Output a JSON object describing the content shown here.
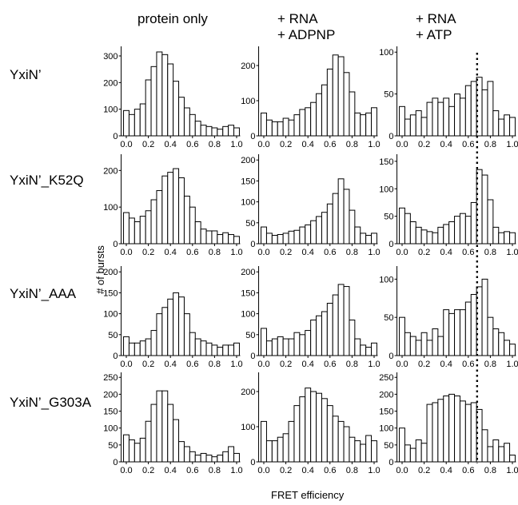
{
  "column_headers": [
    {
      "line1": "protein only",
      "line2": ""
    },
    {
      "line1": "+ RNA",
      "line2": "+ ADPNP"
    },
    {
      "line1": "+ RNA",
      "line2": "+ ATP"
    }
  ],
  "row_labels": [
    "YxiN’",
    "YxiN’_K52Q",
    "YxiN’_AAA",
    "YxiN’_G303A"
  ],
  "ylabel": "# of bursts",
  "xlabel": "FRET efficiency",
  "reference_line": {
    "x": 0.68,
    "style": "dotted",
    "columns": [
      2
    ]
  },
  "chart_data": [
    {
      "type": "bar",
      "row": "YxiN’",
      "condition": "protein only",
      "x_ticks": [
        "0.0",
        "0.2",
        "0.4",
        "0.6",
        "0.8",
        "1.0"
      ],
      "y_ticks": [
        "100",
        "200",
        "300"
      ],
      "ylim": [
        0,
        330
      ],
      "xlim": [
        0,
        1
      ],
      "bin_centers": [
        0.0,
        0.05,
        0.1,
        0.15,
        0.2,
        0.25,
        0.3,
        0.35,
        0.4,
        0.45,
        0.5,
        0.55,
        0.6,
        0.65,
        0.7,
        0.75,
        0.8,
        0.85,
        0.9,
        0.95,
        1.0
      ],
      "values": [
        95,
        80,
        100,
        120,
        210,
        260,
        315,
        305,
        270,
        205,
        145,
        105,
        80,
        55,
        40,
        35,
        30,
        25,
        35,
        40,
        30
      ]
    },
    {
      "type": "bar",
      "row": "YxiN’",
      "condition": "+ RNA + ADPNP",
      "x_ticks": [
        "0.0",
        "0.2",
        "0.4",
        "0.6",
        "0.8",
        "1.0"
      ],
      "y_ticks": [
        "100",
        "200"
      ],
      "ylim": [
        0,
        250
      ],
      "xlim": [
        0,
        1
      ],
      "bin_centers": [
        0.0,
        0.05,
        0.1,
        0.15,
        0.2,
        0.25,
        0.3,
        0.35,
        0.4,
        0.45,
        0.5,
        0.55,
        0.6,
        0.65,
        0.7,
        0.75,
        0.8,
        0.85,
        0.9,
        0.95,
        1.0
      ],
      "values": [
        65,
        45,
        40,
        40,
        50,
        45,
        60,
        75,
        80,
        95,
        120,
        145,
        190,
        230,
        225,
        180,
        125,
        65,
        60,
        65,
        80
      ]
    },
    {
      "type": "bar",
      "row": "YxiN’",
      "condition": "+ RNA + ATP",
      "x_ticks": [
        "0.0",
        "0.2",
        "0.4",
        "0.6",
        "0.8",
        "1.0"
      ],
      "y_ticks": [
        "50",
        "100"
      ],
      "ylim": [
        0,
        105
      ],
      "xlim": [
        0,
        1
      ],
      "bin_centers": [
        0.0,
        0.05,
        0.1,
        0.15,
        0.2,
        0.25,
        0.3,
        0.35,
        0.4,
        0.45,
        0.5,
        0.55,
        0.6,
        0.65,
        0.7,
        0.75,
        0.8,
        0.85,
        0.9,
        0.95,
        1.0
      ],
      "values": [
        35,
        20,
        25,
        30,
        22,
        40,
        45,
        40,
        45,
        35,
        50,
        45,
        60,
        65,
        70,
        55,
        65,
        30,
        20,
        25,
        22
      ]
    },
    {
      "type": "bar",
      "row": "YxiN’_K52Q",
      "condition": "protein only",
      "x_ticks": [
        "0.0",
        "0.2",
        "0.4",
        "0.6",
        "0.8",
        "1.0"
      ],
      "y_ticks": [
        "100",
        "200"
      ],
      "ylim": [
        0,
        240
      ],
      "xlim": [
        0,
        1
      ],
      "bin_centers": [
        0.0,
        0.05,
        0.1,
        0.15,
        0.2,
        0.25,
        0.3,
        0.35,
        0.4,
        0.45,
        0.5,
        0.55,
        0.6,
        0.65,
        0.7,
        0.75,
        0.8,
        0.85,
        0.9,
        0.95,
        1.0
      ],
      "values": [
        85,
        70,
        60,
        75,
        90,
        120,
        145,
        185,
        195,
        205,
        180,
        130,
        100,
        60,
        40,
        35,
        35,
        25,
        30,
        25,
        20
      ]
    },
    {
      "type": "bar",
      "row": "YxiN’_K52Q",
      "condition": "+ RNA + ADPNP",
      "x_ticks": [
        "0.0",
        "0.2",
        "0.4",
        "0.6",
        "0.8",
        "1.0"
      ],
      "y_ticks": [
        "50",
        "100",
        "150",
        "200"
      ],
      "ylim": [
        0,
        210
      ],
      "xlim": [
        0,
        1
      ],
      "bin_centers": [
        0.0,
        0.05,
        0.1,
        0.15,
        0.2,
        0.25,
        0.3,
        0.35,
        0.4,
        0.45,
        0.5,
        0.55,
        0.6,
        0.65,
        0.7,
        0.75,
        0.8,
        0.85,
        0.9,
        0.95,
        1.0
      ],
      "values": [
        40,
        25,
        20,
        22,
        25,
        30,
        32,
        40,
        45,
        55,
        65,
        75,
        95,
        120,
        155,
        130,
        80,
        40,
        25,
        20,
        25
      ]
    },
    {
      "type": "bar",
      "row": "YxiN’_K52Q",
      "condition": "+ RNA + ATP",
      "x_ticks": [
        "0.0",
        "0.2",
        "0.4",
        "0.6",
        "0.8",
        "1.0"
      ],
      "y_ticks": [
        "50",
        "100",
        "150"
      ],
      "ylim": [
        0,
        160
      ],
      "xlim": [
        0,
        1
      ],
      "bin_centers": [
        0.0,
        0.05,
        0.1,
        0.15,
        0.2,
        0.25,
        0.3,
        0.35,
        0.4,
        0.45,
        0.5,
        0.55,
        0.6,
        0.65,
        0.7,
        0.75,
        0.8,
        0.85,
        0.9,
        0.95,
        1.0
      ],
      "values": [
        65,
        55,
        40,
        30,
        25,
        22,
        20,
        30,
        35,
        40,
        50,
        55,
        50,
        75,
        135,
        125,
        80,
        30,
        20,
        22,
        20
      ]
    },
    {
      "type": "bar",
      "row": "YxiN’_AAA",
      "condition": "protein only",
      "x_ticks": [
        "0.0",
        "0.2",
        "0.4",
        "0.6",
        "0.8",
        "1.0"
      ],
      "y_ticks": [
        "50",
        "100",
        "150",
        "200"
      ],
      "ylim": [
        0,
        210
      ],
      "xlim": [
        0,
        1
      ],
      "bin_centers": [
        0.0,
        0.05,
        0.1,
        0.15,
        0.2,
        0.25,
        0.3,
        0.35,
        0.4,
        0.45,
        0.5,
        0.55,
        0.6,
        0.65,
        0.7,
        0.75,
        0.8,
        0.85,
        0.9,
        0.95,
        1.0
      ],
      "values": [
        45,
        30,
        30,
        35,
        40,
        60,
        100,
        115,
        135,
        150,
        140,
        100,
        55,
        40,
        35,
        30,
        25,
        20,
        25,
        25,
        30
      ]
    },
    {
      "type": "bar",
      "row": "YxiN’_AAA",
      "condition": "+ RNA + ADPNP",
      "x_ticks": [
        "0.0",
        "0.2",
        "0.4",
        "0.6",
        "0.8",
        "1.0"
      ],
      "y_ticks": [
        "50",
        "100",
        "150",
        "200"
      ],
      "ylim": [
        0,
        210
      ],
      "xlim": [
        0,
        1
      ],
      "bin_centers": [
        0.0,
        0.05,
        0.1,
        0.15,
        0.2,
        0.25,
        0.3,
        0.35,
        0.4,
        0.45,
        0.5,
        0.55,
        0.6,
        0.65,
        0.7,
        0.75,
        0.8,
        0.85,
        0.9,
        0.95,
        1.0
      ],
      "values": [
        65,
        35,
        40,
        45,
        40,
        40,
        55,
        50,
        60,
        85,
        95,
        105,
        125,
        145,
        170,
        165,
        85,
        40,
        25,
        20,
        30
      ]
    },
    {
      "type": "bar",
      "row": "YxiN’_AAA",
      "condition": "+ RNA + ATP",
      "x_ticks": [
        "0.0",
        "0.2",
        "0.4",
        "0.6",
        "0.8",
        "1.0"
      ],
      "y_ticks": [
        "50",
        "100"
      ],
      "ylim": [
        0,
        115
      ],
      "xlim": [
        0,
        1
      ],
      "bin_centers": [
        0.0,
        0.05,
        0.1,
        0.15,
        0.2,
        0.25,
        0.3,
        0.35,
        0.4,
        0.45,
        0.5,
        0.55,
        0.6,
        0.65,
        0.7,
        0.75,
        0.8,
        0.85,
        0.9,
        0.95,
        1.0
      ],
      "values": [
        50,
        30,
        25,
        20,
        30,
        20,
        35,
        25,
        60,
        55,
        60,
        60,
        70,
        80,
        90,
        100,
        50,
        35,
        30,
        20,
        15
      ]
    },
    {
      "type": "bar",
      "row": "YxiN’_G303A",
      "condition": "protein only",
      "x_ticks": [
        "0.0",
        "0.2",
        "0.4",
        "0.6",
        "0.8",
        "1.0"
      ],
      "y_ticks": [
        "50",
        "100",
        "150",
        "200",
        "250"
      ],
      "ylim": [
        0,
        260
      ],
      "xlim": [
        0,
        1
      ],
      "bin_centers": [
        0.0,
        0.05,
        0.1,
        0.15,
        0.2,
        0.25,
        0.3,
        0.35,
        0.4,
        0.45,
        0.5,
        0.55,
        0.6,
        0.65,
        0.7,
        0.75,
        0.8,
        0.85,
        0.9,
        0.95,
        1.0
      ],
      "values": [
        80,
        65,
        55,
        70,
        120,
        170,
        210,
        210,
        170,
        125,
        60,
        45,
        30,
        20,
        25,
        20,
        15,
        20,
        30,
        45,
        25
      ]
    },
    {
      "type": "bar",
      "row": "YxiN’_G303A",
      "condition": "+ RNA + ADPNP",
      "x_ticks": [
        "0.0",
        "0.2",
        "0.4",
        "0.6",
        "0.8",
        "1.0"
      ],
      "y_ticks": [
        "100",
        "200"
      ],
      "ylim": [
        0,
        250
      ],
      "xlim": [
        0,
        1
      ],
      "bin_centers": [
        0.0,
        0.05,
        0.1,
        0.15,
        0.2,
        0.25,
        0.3,
        0.35,
        0.4,
        0.45,
        0.5,
        0.55,
        0.6,
        0.65,
        0.7,
        0.75,
        0.8,
        0.85,
        0.9,
        0.95,
        1.0
      ],
      "values": [
        115,
        60,
        60,
        70,
        80,
        115,
        160,
        185,
        210,
        200,
        195,
        180,
        160,
        130,
        115,
        100,
        70,
        60,
        50,
        75,
        60
      ]
    },
    {
      "type": "bar",
      "row": "YxiN’_G303A",
      "condition": "+ RNA + ATP",
      "x_ticks": [
        "0.0",
        "0.2",
        "0.4",
        "0.6",
        "0.8",
        "1.0"
      ],
      "y_ticks": [
        "50",
        "100",
        "150",
        "200",
        "250"
      ],
      "ylim": [
        0,
        260
      ],
      "xlim": [
        0,
        1
      ],
      "bin_centers": [
        0.0,
        0.05,
        0.1,
        0.15,
        0.2,
        0.25,
        0.3,
        0.35,
        0.4,
        0.45,
        0.5,
        0.55,
        0.6,
        0.65,
        0.7,
        0.75,
        0.8,
        0.85,
        0.9,
        0.95,
        1.0
      ],
      "values": [
        100,
        50,
        40,
        65,
        55,
        170,
        175,
        185,
        195,
        200,
        195,
        180,
        170,
        175,
        155,
        95,
        45,
        65,
        45,
        55,
        20
      ]
    }
  ]
}
